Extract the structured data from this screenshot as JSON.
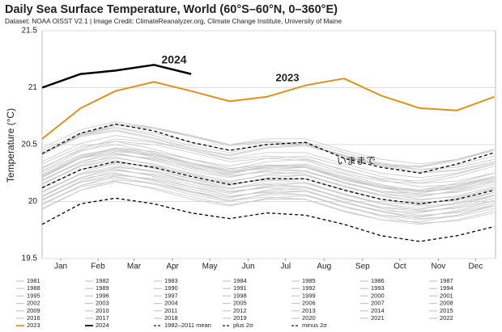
{
  "chart_data": {
    "type": "line",
    "title": "Daily Sea Surface Temperature, World (60°S–60°N, 0–360°E)",
    "subtitle": "Dataset: NOAA OISST V2.1 | Image Credit: ClimateReanalyzer.org, Climate Change Institute, University of Maine",
    "y_label": "Temperature (°C)",
    "x": [
      1,
      32,
      60,
      91,
      121,
      152,
      182,
      213,
      244,
      274,
      305,
      335,
      365
    ],
    "xlim": [
      1,
      366
    ],
    "xticks": [
      {
        "value": 16,
        "label": "Jan"
      },
      {
        "value": 46,
        "label": "Feb"
      },
      {
        "value": 75,
        "label": "Mar"
      },
      {
        "value": 106,
        "label": "Apr"
      },
      {
        "value": 136,
        "label": "May"
      },
      {
        "value": 167,
        "label": "Jun"
      },
      {
        "value": 197,
        "label": "Jul"
      },
      {
        "value": 228,
        "label": "Aug"
      },
      {
        "value": 259,
        "label": "Sep"
      },
      {
        "value": 289,
        "label": "Oct"
      },
      {
        "value": 320,
        "label": "Nov"
      },
      {
        "value": 350,
        "label": "Dec"
      }
    ],
    "ylim": [
      19.5,
      21.5
    ],
    "yticks": [
      19.5,
      20,
      20.5,
      21,
      21.5
    ],
    "grid": true,
    "annotations": [
      {
        "text": "2024",
        "color": "#8b1a1a"
      },
      {
        "text": "2023",
        "color": "#d4880f"
      },
      {
        "text": "いままで",
        "color": "#777777"
      }
    ],
    "series": [
      {
        "name": "1981",
        "color": "#c8c8c8",
        "values": [
          19.94,
          20.1,
          20.17,
          20.12,
          20.04,
          19.97,
          20.02,
          20.02,
          19.92,
          19.84,
          19.8,
          19.84,
          19.92
        ]
      },
      {
        "name": "1982",
        "color": "#c8c8c8",
        "values": [
          19.98,
          20.13,
          20.18,
          20.11,
          20.02,
          19.96,
          20.03,
          20.05,
          19.96,
          19.87,
          19.81,
          19.83,
          19.9
        ]
      },
      {
        "name": "1983",
        "color": "#c8c8c8",
        "values": [
          19.93,
          20.1,
          20.19,
          20.16,
          20.09,
          20.01,
          20.04,
          20.02,
          19.91,
          19.84,
          19.82,
          19.88,
          19.97
        ]
      },
      {
        "name": "1984",
        "color": "#c8c8c8",
        "values": [
          19.98,
          20.14,
          20.21,
          20.16,
          20.08,
          20.01,
          20.06,
          20.06,
          19.96,
          19.88,
          19.84,
          19.88,
          19.96
        ]
      },
      {
        "name": "1985",
        "color": "#c8c8c8",
        "values": [
          20.02,
          20.17,
          20.22,
          20.15,
          20.06,
          20.0,
          20.07,
          20.09,
          20.0,
          19.91,
          19.85,
          19.87,
          19.94
        ]
      },
      {
        "name": "1986",
        "color": "#c8c8c8",
        "values": [
          19.97,
          20.14,
          20.23,
          20.2,
          20.13,
          20.05,
          20.08,
          20.06,
          19.95,
          19.88,
          19.86,
          19.92,
          20.01
        ]
      },
      {
        "name": "1987",
        "color": "#c8c8c8",
        "values": [
          20.01,
          20.17,
          20.24,
          20.19,
          20.11,
          20.04,
          20.09,
          20.09,
          19.99,
          19.91,
          19.87,
          19.91,
          19.99
        ]
      },
      {
        "name": "1988",
        "color": "#c8c8c8",
        "values": [
          20.05,
          20.2,
          20.25,
          20.18,
          20.09,
          20.03,
          20.1,
          20.12,
          20.03,
          19.94,
          19.88,
          19.9,
          19.97
        ]
      },
      {
        "name": "1989",
        "color": "#c8c8c8",
        "values": [
          20.01,
          20.18,
          20.27,
          20.24,
          20.17,
          20.09,
          20.12,
          20.1,
          19.99,
          19.92,
          19.9,
          19.96,
          20.05
        ]
      },
      {
        "name": "1990",
        "color": "#c8c8c8",
        "values": [
          20.05,
          20.21,
          20.28,
          20.23,
          20.15,
          20.08,
          20.13,
          20.13,
          20.03,
          19.95,
          19.91,
          19.95,
          20.03
        ]
      },
      {
        "name": "1991",
        "color": "#c8c8c8",
        "values": [
          20.09,
          20.24,
          20.29,
          20.22,
          20.13,
          20.07,
          20.14,
          20.16,
          20.07,
          19.98,
          19.92,
          19.94,
          20.01
        ]
      },
      {
        "name": "1992",
        "color": "#c8c8c8",
        "values": [
          20.04,
          20.21,
          20.3,
          20.27,
          20.2,
          20.12,
          20.15,
          20.13,
          20.02,
          19.95,
          19.93,
          19.99,
          20.08
        ]
      },
      {
        "name": "1993",
        "color": "#c8c8c8",
        "values": [
          20.08,
          20.24,
          20.31,
          20.26,
          20.18,
          20.11,
          20.16,
          20.16,
          20.06,
          19.98,
          19.94,
          19.98,
          20.06
        ]
      },
      {
        "name": "1994",
        "color": "#c8c8c8",
        "values": [
          20.13,
          20.28,
          20.33,
          20.26,
          20.17,
          20.11,
          20.18,
          20.2,
          20.11,
          20.02,
          19.96,
          19.98,
          20.05
        ]
      },
      {
        "name": "1995",
        "color": "#c8c8c8",
        "values": [
          20.08,
          20.25,
          20.34,
          20.31,
          20.24,
          20.16,
          20.19,
          20.17,
          20.06,
          19.99,
          19.97,
          20.03,
          20.12
        ]
      },
      {
        "name": "1996",
        "color": "#c8c8c8",
        "values": [
          20.12,
          20.28,
          20.35,
          20.3,
          20.22,
          20.15,
          20.2,
          20.2,
          20.1,
          20.02,
          19.98,
          20.02,
          20.1
        ]
      },
      {
        "name": "1997",
        "color": "#c8c8c8",
        "values": [
          20.16,
          20.31,
          20.36,
          20.29,
          20.2,
          20.14,
          20.21,
          20.23,
          20.14,
          20.05,
          19.99,
          20.01,
          20.08
        ]
      },
      {
        "name": "1998",
        "color": "#c8c8c8",
        "values": [
          20.21,
          20.38,
          20.47,
          20.44,
          20.37,
          20.29,
          20.32,
          20.3,
          20.19,
          20.12,
          20.1,
          20.16,
          20.25
        ]
      },
      {
        "name": "1999",
        "color": "#c8c8c8",
        "values": [
          20.15,
          20.31,
          20.38,
          20.33,
          20.25,
          20.18,
          20.23,
          20.23,
          20.13,
          20.05,
          20.01,
          20.05,
          20.13
        ]
      },
      {
        "name": "2000",
        "color": "#c8c8c8",
        "values": [
          20.19,
          20.34,
          20.39,
          20.32,
          20.23,
          20.17,
          20.24,
          20.26,
          20.17,
          20.08,
          20.02,
          20.04,
          20.11
        ]
      },
      {
        "name": "2001",
        "color": "#c8c8c8",
        "values": [
          20.15,
          20.32,
          20.41,
          20.38,
          20.31,
          20.23,
          20.26,
          20.24,
          20.13,
          20.06,
          20.04,
          20.1,
          20.19
        ]
      },
      {
        "name": "2002",
        "color": "#c8c8c8",
        "values": [
          20.19,
          20.35,
          20.42,
          20.37,
          20.29,
          20.22,
          20.27,
          20.27,
          20.17,
          20.09,
          20.05,
          20.09,
          20.17
        ]
      },
      {
        "name": "2003",
        "color": "#c8c8c8",
        "values": [
          20.23,
          20.38,
          20.43,
          20.36,
          20.27,
          20.21,
          20.28,
          20.3,
          20.21,
          20.12,
          20.06,
          20.08,
          20.15
        ]
      },
      {
        "name": "2004",
        "color": "#c8c8c8",
        "values": [
          20.18,
          20.35,
          20.44,
          20.41,
          20.34,
          20.26,
          20.29,
          20.27,
          20.16,
          20.09,
          20.07,
          20.13,
          20.22
        ]
      },
      {
        "name": "2005",
        "color": "#c8c8c8",
        "values": [
          20.22,
          20.38,
          20.45,
          20.4,
          20.32,
          20.25,
          20.3,
          20.3,
          20.2,
          20.12,
          20.08,
          20.12,
          20.2
        ]
      },
      {
        "name": "2006",
        "color": "#c8c8c8",
        "values": [
          20.26,
          20.41,
          20.46,
          20.39,
          20.3,
          20.24,
          20.31,
          20.33,
          20.24,
          20.15,
          20.09,
          20.11,
          20.18
        ]
      },
      {
        "name": "2007",
        "color": "#c8c8c8",
        "values": [
          20.21,
          20.38,
          20.47,
          20.44,
          20.37,
          20.29,
          20.32,
          20.3,
          20.19,
          20.12,
          20.1,
          20.16,
          20.25
        ]
      },
      {
        "name": "2008",
        "color": "#c8c8c8",
        "values": [
          20.23,
          20.39,
          20.46,
          20.41,
          20.33,
          20.26,
          20.31,
          20.31,
          20.21,
          20.13,
          20.09,
          20.13,
          20.21
        ]
      },
      {
        "name": "2009",
        "color": "#c8c8c8",
        "values": [
          20.3,
          20.45,
          20.5,
          20.43,
          20.34,
          20.28,
          20.35,
          20.37,
          20.28,
          20.19,
          20.13,
          20.15,
          20.22
        ]
      },
      {
        "name": "2010",
        "color": "#c8c8c8",
        "values": [
          20.27,
          20.44,
          20.53,
          20.5,
          20.43,
          20.35,
          20.38,
          20.36,
          20.25,
          20.18,
          20.16,
          20.22,
          20.31
        ]
      },
      {
        "name": "2011",
        "color": "#c8c8c8",
        "values": [
          20.24,
          20.4,
          20.47,
          20.42,
          20.34,
          20.27,
          20.32,
          20.32,
          20.22,
          20.14,
          20.1,
          20.14,
          20.22
        ]
      },
      {
        "name": "2012",
        "color": "#c8c8c8",
        "values": [
          20.33,
          20.48,
          20.53,
          20.46,
          20.37,
          20.31,
          20.38,
          20.4,
          20.31,
          20.22,
          20.16,
          20.18,
          20.25
        ]
      },
      {
        "name": "2013",
        "color": "#c8c8c8",
        "values": [
          20.29,
          20.46,
          20.55,
          20.52,
          20.45,
          20.37,
          20.4,
          20.38,
          20.27,
          20.2,
          20.18,
          20.24,
          20.33
        ]
      },
      {
        "name": "2014",
        "color": "#c8c8c8",
        "values": [
          20.35,
          20.51,
          20.58,
          20.53,
          20.45,
          20.38,
          20.43,
          20.43,
          20.33,
          20.25,
          20.21,
          20.25,
          20.33
        ]
      },
      {
        "name": "2015",
        "color": "#c8c8c8",
        "values": [
          20.43,
          20.58,
          20.63,
          20.56,
          20.47,
          20.41,
          20.48,
          20.5,
          20.41,
          20.32,
          20.26,
          20.28,
          20.35
        ]
      },
      {
        "name": "2016",
        "color": "#c8c8c8",
        "values": [
          20.42,
          20.59,
          20.68,
          20.65,
          20.58,
          20.5,
          20.53,
          20.51,
          20.4,
          20.33,
          20.31,
          20.37,
          20.46
        ]
      },
      {
        "name": "2017",
        "color": "#c8c8c8",
        "values": [
          20.42,
          20.58,
          20.65,
          20.6,
          20.52,
          20.45,
          20.5,
          20.5,
          20.4,
          20.32,
          20.28,
          20.32,
          20.4
        ]
      },
      {
        "name": "2018",
        "color": "#c8c8c8",
        "values": [
          20.42,
          20.57,
          20.62,
          20.55,
          20.46,
          20.4,
          20.47,
          20.49,
          20.4,
          20.31,
          20.25,
          20.27,
          20.34
        ]
      },
      {
        "name": "2019",
        "color": "#c8c8c8",
        "values": [
          20.42,
          20.59,
          20.68,
          20.65,
          20.58,
          20.5,
          20.53,
          20.51,
          20.4,
          20.33,
          20.31,
          20.37,
          20.46
        ]
      },
      {
        "name": "2020",
        "color": "#c8c8c8",
        "values": [
          20.47,
          20.63,
          20.7,
          20.65,
          20.57,
          20.5,
          20.55,
          20.55,
          20.45,
          20.37,
          20.33,
          20.37,
          20.45
        ]
      },
      {
        "name": "2021",
        "color": "#c8c8c8",
        "values": [
          20.45,
          20.6,
          20.65,
          20.58,
          20.49,
          20.43,
          20.5,
          20.52,
          20.43,
          20.34,
          20.28,
          20.3,
          20.37
        ]
      },
      {
        "name": "2022",
        "color": "#c8c8c8",
        "values": [
          20.41,
          20.58,
          20.67,
          20.64,
          20.57,
          20.49,
          20.52,
          20.5,
          20.39,
          20.32,
          20.3,
          20.36,
          20.45
        ]
      },
      {
        "name": "2023",
        "color": "#e0901a",
        "width": 2,
        "values": [
          20.55,
          20.82,
          20.97,
          21.05,
          20.97,
          20.88,
          20.92,
          21.02,
          21.08,
          20.93,
          20.82,
          20.8,
          20.92
        ]
      },
      {
        "name": "2024",
        "color": "#000000",
        "width": 2.5,
        "values": [
          21.0,
          21.12,
          21.15,
          21.2,
          21.12,
          null,
          null,
          null,
          null,
          null,
          null,
          null,
          null
        ]
      },
      {
        "name": "1982–2011 mean",
        "color": "#000000",
        "dashed": true,
        "values": [
          20.12,
          20.28,
          20.35,
          20.3,
          20.22,
          20.15,
          20.2,
          20.2,
          20.1,
          20.02,
          19.98,
          20.02,
          20.1
        ]
      },
      {
        "name": "plus 2σ",
        "color": "#000000",
        "dashed": true,
        "values": [
          20.42,
          20.6,
          20.68,
          20.62,
          20.52,
          20.45,
          20.5,
          20.52,
          20.38,
          20.3,
          20.25,
          20.33,
          20.43
        ]
      },
      {
        "name": "minus 2σ",
        "color": "#000000",
        "dashed": true,
        "values": [
          19.8,
          19.98,
          20.03,
          19.98,
          19.9,
          19.85,
          19.9,
          19.88,
          19.8,
          19.7,
          19.65,
          19.7,
          19.78
        ]
      }
    ]
  }
}
